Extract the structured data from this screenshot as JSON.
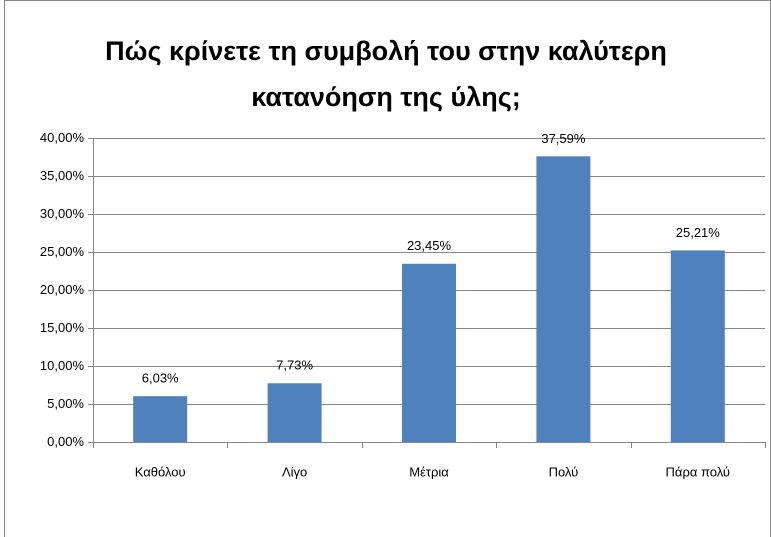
{
  "chart_data": {
    "type": "bar",
    "title": "Πώς κρίνετε τη συμβολή του στην καλύτερη κατανόηση της ύλης;",
    "categories": [
      "Καθόλου",
      "Λίγο",
      "Μέτρια",
      "Πολύ",
      "Πάρα πολύ"
    ],
    "values": [
      6.03,
      7.73,
      23.45,
      37.59,
      25.21
    ],
    "value_labels": [
      "6,03%",
      "7,73%",
      "23,45%",
      "37,59%",
      "25,21%"
    ],
    "color": "#4f81bd",
    "ylim": [
      0,
      40
    ],
    "yticks": [
      {
        "value": 0,
        "label": "0,00%"
      },
      {
        "value": 5,
        "label": "5,00%"
      },
      {
        "value": 10,
        "label": "10,00%"
      },
      {
        "value": 15,
        "label": "15,00%"
      },
      {
        "value": 20,
        "label": "20,00%"
      },
      {
        "value": 25,
        "label": "25,00%"
      },
      {
        "value": 30,
        "label": "30,00%"
      },
      {
        "value": 35,
        "label": "35,00%"
      },
      {
        "value": 40,
        "label": "40,00%"
      }
    ],
    "grid": true
  }
}
